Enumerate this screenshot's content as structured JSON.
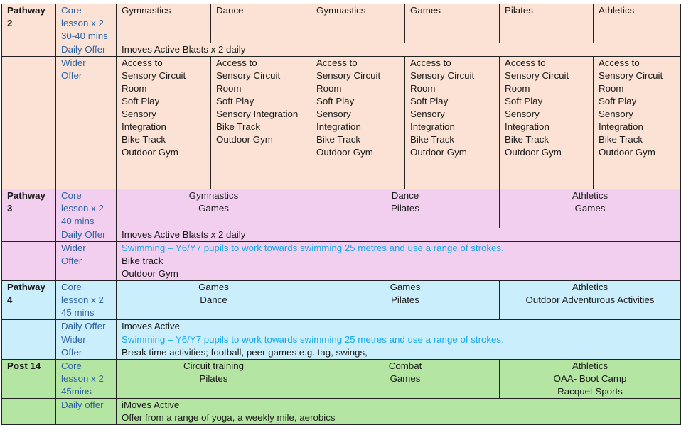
{
  "colors": {
    "pathway_2": "#fbe2d5",
    "pathway_3": "#f2cfee",
    "pathway_4": "#caeefb",
    "post_14": "#b4e5a2",
    "label_text": "#2f64a3",
    "highlight_text": "#19a6ea"
  },
  "pathways": [
    {
      "name": "Pathway 2",
      "color_key": "pathway_2",
      "rows": [
        {
          "label": [
            "Core",
            "lesson x 2",
            "30-40 mins"
          ],
          "cells": [
            [
              "Gymnastics"
            ],
            [
              "Dance"
            ],
            [
              "Gymnastics"
            ],
            [
              "Games"
            ],
            [
              "Pilates"
            ],
            [
              "Athletics"
            ]
          ]
        },
        {
          "label": [
            "Daily Offer"
          ],
          "cells": [
            [
              "Imoves Active Blasts x 2 daily"
            ]
          ]
        },
        {
          "label": [
            "Wider",
            "Offer"
          ],
          "cells": [
            [
              "Access to",
              "Sensory Circuit",
              "Room",
              "Soft Play",
              "Sensory",
              "Integration",
              "Bike Track",
              "Outdoor Gym"
            ],
            [
              "Access to",
              "Sensory Circuit",
              "Room",
              "Soft Play",
              "Sensory Integration",
              "Bike Track",
              "Outdoor Gym"
            ],
            [
              "Access to",
              "Sensory Circuit",
              "Room",
              "Soft Play",
              "Sensory",
              "Integration",
              "Bike Track",
              "Outdoor Gym"
            ],
            [
              "Access to",
              "Sensory Circuit",
              "Room",
              "Soft Play",
              "Sensory",
              "Integration",
              "Bike Track",
              "Outdoor Gym"
            ],
            [
              "Access to",
              "Sensory Circuit",
              "Room",
              "Soft Play",
              "Sensory",
              "Integration",
              "Bike Track",
              "Outdoor Gym"
            ],
            [
              "Access to",
              "Sensory Circuit",
              "Room",
              "Soft Play",
              "Sensory",
              "Integration",
              "Bike Track",
              "Outdoor Gym"
            ]
          ]
        }
      ]
    },
    {
      "name": "Pathway 3",
      "color_key": "pathway_3",
      "rows": [
        {
          "label": [
            "Core",
            "lesson x 2",
            "40 mins"
          ],
          "cells": [
            [
              "Gymnastics",
              "Games"
            ],
            [
              "Dance",
              "Pilates"
            ],
            [
              "Athletics",
              "Games"
            ]
          ]
        },
        {
          "label": [
            "Daily Offer"
          ],
          "cells": [
            [
              "Imoves Active Blasts x 2 daily"
            ]
          ]
        },
        {
          "label": [
            "Wider",
            "Offer"
          ],
          "highlight_first": true,
          "cells": [
            [
              "Swimming – Y6/Y7 pupils to work towards swimming 25 metres and use a range of strokes.",
              "Bike track",
              "Outdoor Gym"
            ]
          ]
        }
      ]
    },
    {
      "name": "Pathway 4",
      "color_key": "pathway_4",
      "rows": [
        {
          "label": [
            "Core",
            "lesson x 2",
            "45 mins"
          ],
          "cells": [
            [
              "Games",
              "Dance"
            ],
            [
              "Games",
              "Pilates"
            ],
            [
              "Athletics",
              "Outdoor Adventurous Activities"
            ]
          ]
        },
        {
          "label": [
            "Daily Offer"
          ],
          "cells": [
            [
              "Imoves Active"
            ]
          ]
        },
        {
          "label": [
            "Wider",
            "Offer"
          ],
          "highlight_first": true,
          "cells": [
            [
              "Swimming – Y6/Y7 pupils to work towards swimming 25 metres and use a range of strokes.",
              "Break time activities; football, peer games e.g. tag, swings,"
            ]
          ]
        }
      ]
    },
    {
      "name": "Post 14",
      "color_key": "post_14",
      "rows": [
        {
          "label": [
            "Core",
            "lesson x 2",
            "45mins"
          ],
          "cells": [
            [
              "Circuit training",
              "Pilates"
            ],
            [
              "Combat",
              "Games"
            ],
            [
              "Athletics",
              "OAA- Boot Camp",
              "Racquet Sports"
            ]
          ]
        },
        {
          "label": [
            "Daily offer"
          ],
          "cells": [
            [
              "iMoves Active",
              "Offer from a range of yoga, a weekly mile, aerobics"
            ]
          ]
        }
      ]
    }
  ]
}
